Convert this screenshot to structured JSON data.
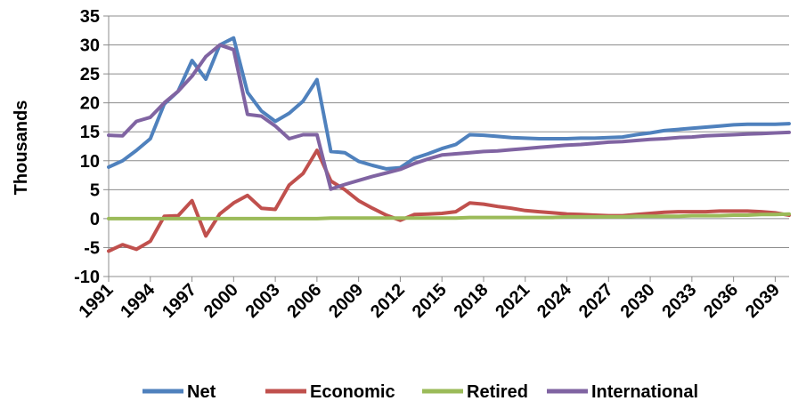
{
  "chart_data": {
    "type": "line",
    "title": "",
    "xlabel": "",
    "ylabel": "Thousands",
    "ylim": [
      -10,
      35
    ],
    "yticks": [
      "-10",
      "-5",
      "0",
      "5",
      "10",
      "15",
      "20",
      "25",
      "30",
      "35"
    ],
    "xlim": [
      1991,
      2040
    ],
    "xticks": [
      "1991",
      "1994",
      "1997",
      "2000",
      "2003",
      "2006",
      "2009",
      "2012",
      "2015",
      "2018",
      "2021",
      "2024",
      "2027",
      "2030",
      "2033",
      "2036",
      "2039"
    ],
    "grid": "horizontal",
    "legend": "bottom",
    "x": [
      1991,
      1992,
      1993,
      1994,
      1995,
      1996,
      1997,
      1998,
      1999,
      2000,
      2001,
      2002,
      2003,
      2004,
      2005,
      2006,
      2007,
      2008,
      2009,
      2010,
      2011,
      2012,
      2013,
      2014,
      2015,
      2016,
      2017,
      2018,
      2019,
      2020,
      2021,
      2022,
      2023,
      2024,
      2025,
      2026,
      2027,
      2028,
      2029,
      2030,
      2031,
      2032,
      2033,
      2034,
      2035,
      2036,
      2037,
      2038,
      2039,
      2040
    ],
    "series": [
      {
        "name": "Net",
        "color": "#4F81BD",
        "values": [
          8.9,
          10.0,
          11.8,
          13.8,
          19.8,
          22.0,
          27.3,
          24.1,
          30.0,
          31.2,
          21.8,
          18.6,
          16.8,
          18.2,
          20.3,
          24.0,
          11.6,
          11.4,
          9.9,
          9.2,
          8.6,
          8.8,
          10.4,
          11.2,
          12.1,
          12.8,
          14.5,
          14.4,
          14.2,
          14.0,
          13.9,
          13.8,
          13.8,
          13.8,
          13.9,
          13.9,
          14.0,
          14.1,
          14.5,
          14.8,
          15.2,
          15.4,
          15.6,
          15.8,
          16.0,
          16.2,
          16.3,
          16.3,
          16.3,
          16.4
        ]
      },
      {
        "name": "Economic",
        "color": "#C0504D",
        "values": [
          -5.6,
          -4.5,
          -5.3,
          -3.9,
          0.4,
          0.5,
          3.1,
          -3.0,
          0.8,
          2.7,
          4.0,
          1.8,
          1.6,
          5.8,
          7.8,
          11.8,
          6.5,
          5.0,
          3.1,
          1.8,
          0.6,
          -0.3,
          0.7,
          0.8,
          0.9,
          1.2,
          2.7,
          2.5,
          2.1,
          1.8,
          1.4,
          1.2,
          1.0,
          0.8,
          0.7,
          0.6,
          0.5,
          0.5,
          0.7,
          0.9,
          1.1,
          1.2,
          1.2,
          1.2,
          1.3,
          1.3,
          1.3,
          1.2,
          1.0,
          0.6
        ]
      },
      {
        "name": "Retired",
        "color": "#9BBB59",
        "values": [
          0,
          0,
          0,
          0,
          0,
          0,
          0,
          0,
          0,
          0,
          0,
          0,
          0,
          0,
          0,
          0,
          0.1,
          0.1,
          0.1,
          0.1,
          0.1,
          0.1,
          0.1,
          0.1,
          0.1,
          0.1,
          0.2,
          0.2,
          0.2,
          0.2,
          0.2,
          0.2,
          0.2,
          0.3,
          0.3,
          0.3,
          0.3,
          0.3,
          0.4,
          0.4,
          0.4,
          0.4,
          0.5,
          0.5,
          0.5,
          0.6,
          0.6,
          0.7,
          0.7,
          0.8
        ]
      },
      {
        "name": "International",
        "color": "#8064A2",
        "values": [
          14.4,
          14.3,
          16.8,
          17.5,
          20.0,
          22.0,
          24.6,
          28.0,
          30.0,
          29.2,
          18.0,
          17.7,
          16.0,
          13.8,
          14.5,
          14.5,
          5.1,
          5.9,
          6.6,
          7.3,
          7.9,
          8.5,
          9.5,
          10.3,
          11.0,
          11.2,
          11.4,
          11.6,
          11.7,
          11.9,
          12.1,
          12.3,
          12.5,
          12.7,
          12.8,
          13.0,
          13.2,
          13.3,
          13.5,
          13.7,
          13.8,
          14.0,
          14.1,
          14.3,
          14.4,
          14.5,
          14.6,
          14.7,
          14.8,
          14.9
        ]
      }
    ]
  }
}
